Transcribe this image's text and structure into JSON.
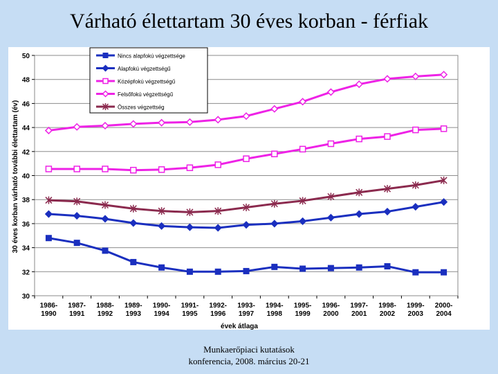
{
  "slide": {
    "title": "Várható élettartam 30 éves korban - férfiak",
    "footer_line1": "Munkaerőpiaci kutatások",
    "footer_line2": "konferencia, 2008. március 20-21"
  },
  "chart_data": {
    "type": "line",
    "title": "",
    "xlabel": "évek átlaga",
    "ylabel": "30 éves korban várható további élettartam (év)",
    "ylim": [
      30,
      50
    ],
    "yticks": [
      30,
      32,
      34,
      36,
      38,
      40,
      42,
      44,
      46,
      48,
      50
    ],
    "grid": true,
    "legend_position": "top-left",
    "categories": [
      [
        "1986-",
        "1990"
      ],
      [
        "1987-",
        "1991"
      ],
      [
        "1988-",
        "1992"
      ],
      [
        "1989-",
        "1993"
      ],
      [
        "1990-",
        "1994"
      ],
      [
        "1991-",
        "1995"
      ],
      [
        "1992-",
        "1996"
      ],
      [
        "1993-",
        "1997"
      ],
      [
        "1994-",
        "1998"
      ],
      [
        "1995-",
        "1999"
      ],
      [
        "1996-",
        "2000"
      ],
      [
        "1997-",
        "2001"
      ],
      [
        "1998-",
        "2002"
      ],
      [
        "1999-",
        "2003"
      ],
      [
        "2000-",
        "2004"
      ]
    ],
    "series": [
      {
        "name": "Nincs alapfokú végzettsége",
        "color": "#1a2fbf",
        "marker": "square-filled",
        "values": [
          34.8,
          34.4,
          33.75,
          32.8,
          32.35,
          32.0,
          32.0,
          32.05,
          32.4,
          32.25,
          32.3,
          32.35,
          32.45,
          31.95,
          31.95
        ]
      },
      {
        "name": "Alapfokú végzettségű",
        "color": "#1a2fbf",
        "marker": "diamond-filled",
        "values": [
          36.8,
          36.65,
          36.4,
          36.05,
          35.8,
          35.7,
          35.65,
          35.9,
          36.0,
          36.2,
          36.5,
          36.8,
          37.0,
          37.4,
          37.8
        ]
      },
      {
        "name": "Középfokú végzettségű",
        "color": "#ee22e6",
        "marker": "square-open",
        "values": [
          40.55,
          40.55,
          40.55,
          40.45,
          40.5,
          40.65,
          40.9,
          41.4,
          41.8,
          42.2,
          42.65,
          43.05,
          43.25,
          43.8,
          43.9
        ]
      },
      {
        "name": "Felsőfokú végzettségű",
        "color": "#ee22e6",
        "marker": "diamond-open",
        "values": [
          43.75,
          44.05,
          44.15,
          44.3,
          44.4,
          44.45,
          44.65,
          44.95,
          45.55,
          46.15,
          46.95,
          47.6,
          48.05,
          48.25,
          48.4
        ]
      },
      {
        "name": "Összes végzettség",
        "color": "#8b2a4e",
        "marker": "star",
        "values": [
          37.95,
          37.85,
          37.55,
          37.25,
          37.05,
          36.95,
          37.05,
          37.35,
          37.65,
          37.9,
          38.25,
          38.6,
          38.9,
          39.2,
          39.6
        ]
      }
    ]
  }
}
